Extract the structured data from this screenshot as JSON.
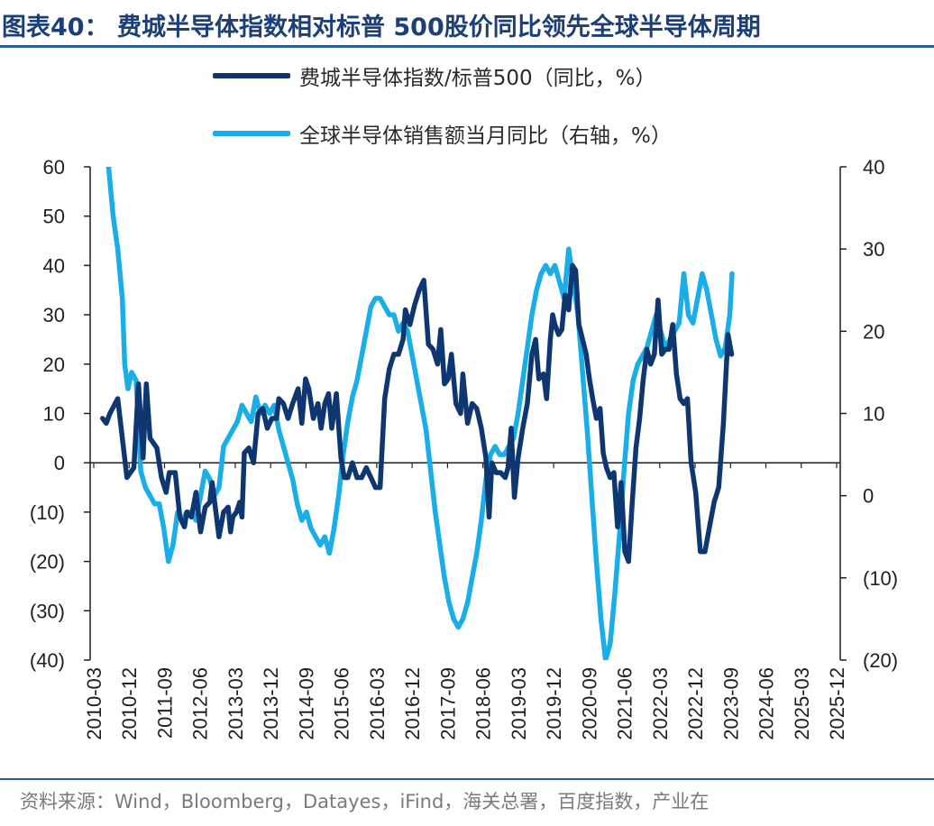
{
  "title": "图表40：  费城半导体指数相对标普 500股价同比领先全球半导体周期",
  "source": "资料来源：Wind，Bloomberg，Datayes，iFind，海关总署，百度指数，产业在",
  "colors": {
    "series_dark": "#0e3670",
    "series_light": "#19aee8",
    "accent": "#2f5c9a"
  },
  "chart_data": {
    "type": "line",
    "left_axis": {
      "min": -40,
      "max": 60,
      "ticks": [
        60,
        50,
        40,
        30,
        20,
        10,
        0,
        -10,
        -20,
        -30,
        -40
      ],
      "tick_labels": [
        "60",
        "50",
        "40",
        "30",
        "20",
        "10",
        "0",
        "(10)",
        "(20)",
        "(30)",
        "(40)"
      ]
    },
    "right_axis": {
      "min": -20,
      "max": 40,
      "ticks": [
        40,
        30,
        20,
        10,
        0,
        -10,
        -20
      ],
      "tick_labels": [
        "40",
        "30",
        "20",
        "10",
        "0",
        "(10)",
        "(20)"
      ]
    },
    "x_labels": [
      "2010-03",
      "2010-12",
      "2011-09",
      "2012-06",
      "2013-03",
      "2013-12",
      "2014-09",
      "2015-06",
      "2016-03",
      "2016-12",
      "2017-09",
      "2018-06",
      "2019-03",
      "2019-12",
      "2020-09",
      "2021-06",
      "2022-03",
      "2022-12",
      "2023-09",
      "2024-06",
      "2025-03",
      "2025-12"
    ],
    "grid": false,
    "legend_position": "top",
    "series": [
      {
        "name": "费城半导体指数/标普500（同比，%）",
        "axis": "left",
        "values": [
          [
            2010.17,
            9
          ],
          [
            2010.25,
            8
          ],
          [
            2010.33,
            10
          ],
          [
            2010.5,
            13
          ],
          [
            2010.6,
            5
          ],
          [
            2010.7,
            -3
          ],
          [
            2010.85,
            -1
          ],
          [
            2010.95,
            16
          ],
          [
            2011.05,
            1
          ],
          [
            2011.12,
            16
          ],
          [
            2011.2,
            5
          ],
          [
            2011.35,
            3
          ],
          [
            2011.45,
            -3
          ],
          [
            2011.55,
            -6
          ],
          [
            2011.62,
            -2
          ],
          [
            2011.75,
            -2
          ],
          [
            2011.85,
            -11
          ],
          [
            2011.95,
            -13
          ],
          [
            2012.0,
            -10
          ],
          [
            2012.1,
            -11
          ],
          [
            2012.2,
            -6
          ],
          [
            2012.3,
            -14
          ],
          [
            2012.4,
            -9
          ],
          [
            2012.5,
            -8
          ],
          [
            2012.55,
            -4
          ],
          [
            2012.62,
            -9
          ],
          [
            2012.7,
            -15
          ],
          [
            2012.8,
            -10
          ],
          [
            2012.9,
            -9
          ],
          [
            2012.95,
            -14
          ],
          [
            2013.0,
            -11
          ],
          [
            2013.08,
            -10
          ],
          [
            2013.15,
            -8
          ],
          [
            2013.2,
            -11
          ],
          [
            2013.25,
            2
          ],
          [
            2013.35,
            3
          ],
          [
            2013.45,
            0
          ],
          [
            2013.55,
            10
          ],
          [
            2013.65,
            11
          ],
          [
            2013.75,
            7
          ],
          [
            2013.85,
            9
          ],
          [
            2013.95,
            9
          ],
          [
            2014.0,
            13
          ],
          [
            2014.1,
            12
          ],
          [
            2014.2,
            9
          ],
          [
            2014.3,
            12
          ],
          [
            2014.42,
            15
          ],
          [
            2014.5,
            8
          ],
          [
            2014.58,
            17
          ],
          [
            2014.65,
            15
          ],
          [
            2014.75,
            9
          ],
          [
            2014.85,
            12
          ],
          [
            2014.92,
            7
          ],
          [
            2015.0,
            12
          ],
          [
            2015.08,
            14
          ],
          [
            2015.15,
            7
          ],
          [
            2015.25,
            14
          ],
          [
            2015.35,
            1
          ],
          [
            2015.42,
            -3
          ],
          [
            2015.5,
            -3
          ],
          [
            2015.6,
            0
          ],
          [
            2015.7,
            -3
          ],
          [
            2015.8,
            -3
          ],
          [
            2015.9,
            -1
          ],
          [
            2016.0,
            -3
          ],
          [
            2016.1,
            -5
          ],
          [
            2016.2,
            -5
          ],
          [
            2016.3,
            13
          ],
          [
            2016.4,
            19
          ],
          [
            2016.5,
            22
          ],
          [
            2016.6,
            22
          ],
          [
            2016.7,
            25
          ],
          [
            2016.75,
            31
          ],
          [
            2016.85,
            28
          ],
          [
            2016.95,
            32
          ],
          [
            2017.05,
            35
          ],
          [
            2017.15,
            37
          ],
          [
            2017.25,
            24
          ],
          [
            2017.35,
            23
          ],
          [
            2017.45,
            20
          ],
          [
            2017.52,
            27
          ],
          [
            2017.6,
            16
          ],
          [
            2017.68,
            17
          ],
          [
            2017.75,
            22
          ],
          [
            2017.85,
            12
          ],
          [
            2017.95,
            10
          ],
          [
            2018.0,
            18
          ],
          [
            2018.1,
            8
          ],
          [
            2018.2,
            12
          ],
          [
            2018.3,
            11
          ],
          [
            2018.4,
            7
          ],
          [
            2018.5,
            1
          ],
          [
            2018.57,
            -11
          ],
          [
            2018.63,
            0
          ],
          [
            2018.72,
            -2
          ],
          [
            2018.82,
            -2
          ],
          [
            2018.92,
            -3
          ],
          [
            2018.98,
            -1
          ],
          [
            2019.05,
            7
          ],
          [
            2019.12,
            -7
          ],
          [
            2019.2,
            1
          ],
          [
            2019.3,
            7
          ],
          [
            2019.4,
            12
          ],
          [
            2019.5,
            22
          ],
          [
            2019.58,
            25
          ],
          [
            2019.65,
            17
          ],
          [
            2019.75,
            18
          ],
          [
            2019.82,
            13
          ],
          [
            2019.9,
            25
          ],
          [
            2019.95,
            30
          ],
          [
            2020.0,
            28
          ],
          [
            2020.08,
            26
          ],
          [
            2020.15,
            27
          ],
          [
            2020.22,
            34
          ],
          [
            2020.3,
            31
          ],
          [
            2020.38,
            40
          ],
          [
            2020.45,
            39
          ],
          [
            2020.52,
            28
          ],
          [
            2020.6,
            25
          ],
          [
            2020.68,
            22
          ],
          [
            2020.75,
            17
          ],
          [
            2020.82,
            13
          ],
          [
            2020.9,
            9
          ],
          [
            2020.98,
            11
          ],
          [
            2021.05,
            2
          ],
          [
            2021.12,
            -1
          ],
          [
            2021.2,
            -3
          ],
          [
            2021.28,
            -2
          ],
          [
            2021.36,
            -13
          ],
          [
            2021.44,
            -4
          ],
          [
            2021.52,
            -18
          ],
          [
            2021.6,
            -20
          ],
          [
            2021.68,
            -8
          ],
          [
            2021.76,
            3
          ],
          [
            2021.84,
            9
          ],
          [
            2021.92,
            17
          ],
          [
            2022.0,
            23
          ],
          [
            2022.08,
            20
          ],
          [
            2022.16,
            22
          ],
          [
            2022.24,
            33
          ],
          [
            2022.32,
            22
          ],
          [
            2022.4,
            23
          ],
          [
            2022.48,
            23
          ],
          [
            2022.56,
            28
          ],
          [
            2022.64,
            18
          ],
          [
            2022.72,
            13
          ],
          [
            2022.8,
            12
          ],
          [
            2022.88,
            13
          ],
          [
            2022.96,
            0
          ],
          [
            2023.06,
            -6
          ],
          [
            2023.16,
            -18
          ],
          [
            2023.26,
            -18
          ],
          [
            2023.36,
            -13
          ],
          [
            2023.46,
            -8
          ],
          [
            2023.56,
            -5
          ],
          [
            2023.66,
            8
          ],
          [
            2023.76,
            26
          ],
          [
            2023.84,
            22
          ]
        ]
      },
      {
        "name": "全球半导体销售额当月同比（右轴，%）",
        "axis": "right",
        "values": [
          [
            2010.3,
            40
          ],
          [
            2010.4,
            34
          ],
          [
            2010.5,
            30
          ],
          [
            2010.6,
            24
          ],
          [
            2010.65,
            16
          ],
          [
            2010.72,
            13
          ],
          [
            2010.8,
            15
          ],
          [
            2010.9,
            14
          ],
          [
            2011.0,
            3
          ],
          [
            2011.1,
            1
          ],
          [
            2011.2,
            0
          ],
          [
            2011.3,
            -1
          ],
          [
            2011.4,
            -1
          ],
          [
            2011.5,
            -4
          ],
          [
            2011.6,
            -8
          ],
          [
            2011.7,
            -6
          ],
          [
            2011.8,
            -2
          ],
          [
            2011.9,
            -3
          ],
          [
            2012.0,
            -2
          ],
          [
            2012.1,
            -2
          ],
          [
            2012.2,
            -3
          ],
          [
            2012.3,
            0
          ],
          [
            2012.4,
            3
          ],
          [
            2012.5,
            2
          ],
          [
            2012.6,
            0
          ],
          [
            2012.7,
            1
          ],
          [
            2012.8,
            6
          ],
          [
            2012.9,
            7
          ],
          [
            2013.0,
            8
          ],
          [
            2013.1,
            9
          ],
          [
            2013.2,
            11
          ],
          [
            2013.3,
            10
          ],
          [
            2013.4,
            9
          ],
          [
            2013.5,
            12
          ],
          [
            2013.6,
            10
          ],
          [
            2013.7,
            11
          ],
          [
            2013.8,
            10
          ],
          [
            2013.9,
            11
          ],
          [
            2014.0,
            8
          ],
          [
            2014.1,
            6
          ],
          [
            2014.2,
            4
          ],
          [
            2014.3,
            2
          ],
          [
            2014.4,
            -1
          ],
          [
            2014.5,
            -3
          ],
          [
            2014.6,
            -2
          ],
          [
            2014.7,
            -4
          ],
          [
            2014.8,
            -5
          ],
          [
            2014.9,
            -6
          ],
          [
            2015.0,
            -5
          ],
          [
            2015.1,
            -7
          ],
          [
            2015.2,
            -4
          ],
          [
            2015.3,
            0
          ],
          [
            2015.4,
            5
          ],
          [
            2015.5,
            9
          ],
          [
            2015.6,
            12
          ],
          [
            2015.7,
            14
          ],
          [
            2015.8,
            17
          ],
          [
            2015.9,
            20
          ],
          [
            2016.0,
            23
          ],
          [
            2016.1,
            24
          ],
          [
            2016.2,
            24
          ],
          [
            2016.3,
            23
          ],
          [
            2016.4,
            22
          ],
          [
            2016.5,
            22
          ],
          [
            2016.6,
            20
          ],
          [
            2016.7,
            21
          ],
          [
            2016.8,
            20
          ],
          [
            2016.9,
            17
          ],
          [
            2017.0,
            14
          ],
          [
            2017.1,
            11
          ],
          [
            2017.2,
            8
          ],
          [
            2017.3,
            3
          ],
          [
            2017.4,
            -2
          ],
          [
            2017.5,
            -6
          ],
          [
            2017.6,
            -10
          ],
          [
            2017.7,
            -13
          ],
          [
            2017.8,
            -15
          ],
          [
            2017.9,
            -16
          ],
          [
            2018.0,
            -15
          ],
          [
            2018.1,
            -13
          ],
          [
            2018.2,
            -10
          ],
          [
            2018.3,
            -7
          ],
          [
            2018.4,
            -3
          ],
          [
            2018.5,
            2
          ],
          [
            2018.6,
            5
          ],
          [
            2018.7,
            6
          ],
          [
            2018.8,
            5
          ],
          [
            2018.9,
            5
          ],
          [
            2019.0,
            6
          ],
          [
            2019.1,
            7
          ],
          [
            2019.2,
            10
          ],
          [
            2019.3,
            14
          ],
          [
            2019.4,
            18
          ],
          [
            2019.5,
            22
          ],
          [
            2019.6,
            25
          ],
          [
            2019.7,
            27
          ],
          [
            2019.8,
            28
          ],
          [
            2019.9,
            27
          ],
          [
            2020.0,
            28
          ],
          [
            2020.1,
            26
          ],
          [
            2020.2,
            24
          ],
          [
            2020.3,
            30
          ],
          [
            2020.4,
            26
          ],
          [
            2020.5,
            22
          ],
          [
            2020.6,
            15
          ],
          [
            2020.7,
            8
          ],
          [
            2020.8,
            0
          ],
          [
            2020.9,
            -8
          ],
          [
            2021.0,
            -15
          ],
          [
            2021.1,
            -20
          ],
          [
            2021.2,
            -18
          ],
          [
            2021.3,
            -12
          ],
          [
            2021.4,
            -5
          ],
          [
            2021.5,
            3
          ],
          [
            2021.6,
            10
          ],
          [
            2021.7,
            14
          ],
          [
            2021.8,
            16
          ],
          [
            2021.9,
            17
          ],
          [
            2022.0,
            18
          ],
          [
            2022.1,
            20
          ],
          [
            2022.2,
            22
          ],
          [
            2022.3,
            20
          ],
          [
            2022.4,
            18
          ],
          [
            2022.5,
            19
          ],
          [
            2022.6,
            20
          ],
          [
            2022.7,
            21
          ],
          [
            2022.8,
            27
          ],
          [
            2022.9,
            22
          ],
          [
            2023.0,
            21
          ],
          [
            2023.1,
            24
          ],
          [
            2023.2,
            27
          ],
          [
            2023.3,
            25
          ],
          [
            2023.4,
            22
          ],
          [
            2023.5,
            19
          ],
          [
            2023.6,
            17
          ],
          [
            2023.7,
            18
          ],
          [
            2023.8,
            22
          ],
          [
            2023.85,
            27
          ]
        ]
      }
    ]
  }
}
